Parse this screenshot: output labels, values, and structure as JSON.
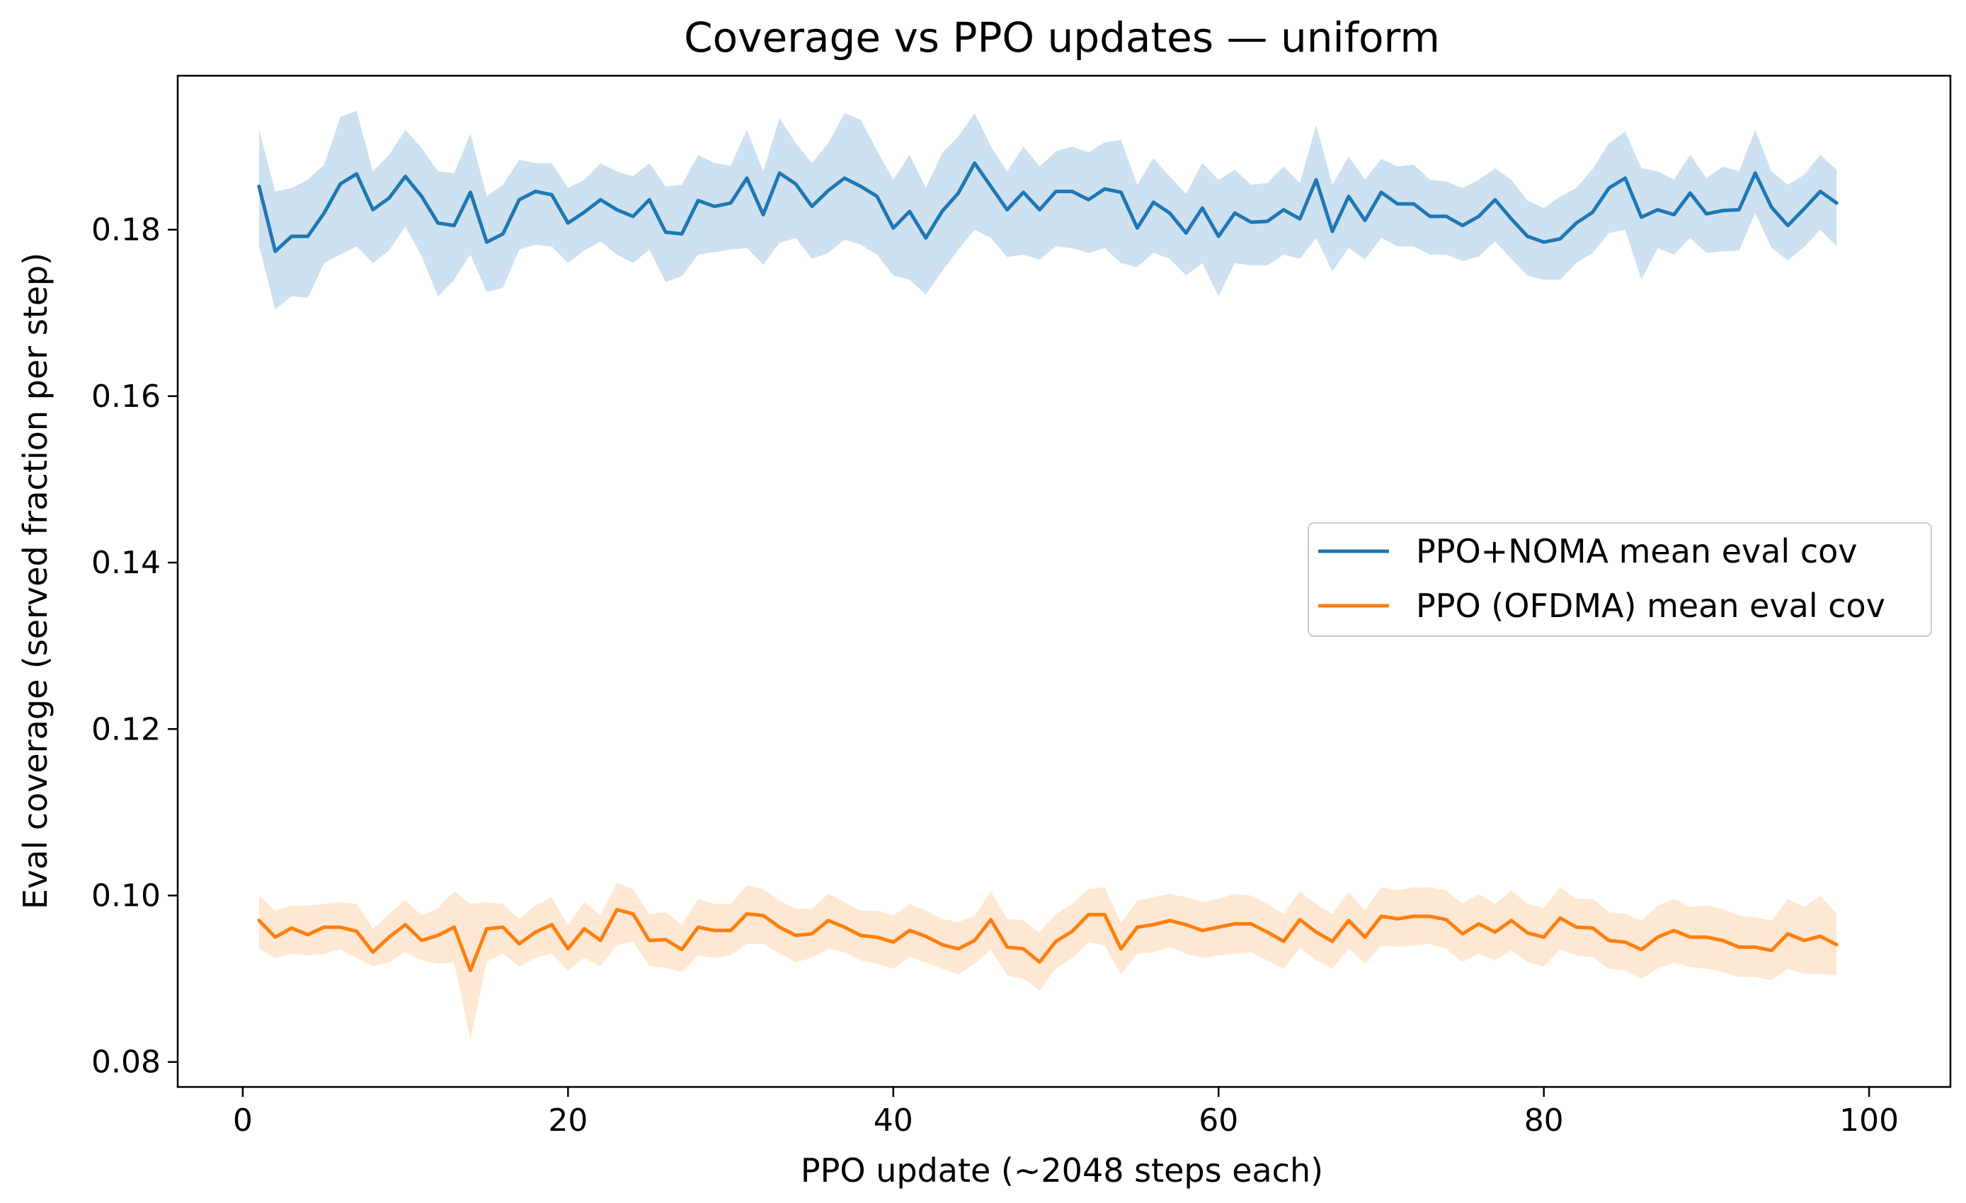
{
  "chart_data": {
    "type": "line",
    "title": "Coverage vs PPO updates — uniform",
    "xlabel": "PPO update (~2048 steps each)",
    "ylabel": "Eval coverage (served fraction per step)",
    "xlim": [
      -4,
      105
    ],
    "ylim": [
      0.077,
      0.1985
    ],
    "xticks": [
      0,
      20,
      40,
      60,
      80,
      100
    ],
    "yticks": [
      0.08,
      0.1,
      0.12,
      0.14,
      0.16,
      0.18
    ],
    "ytick_labels": [
      "0.08",
      "0.10",
      "0.12",
      "0.14",
      "0.16",
      "0.18"
    ],
    "grid": false,
    "legend_position": "center-right",
    "x": [
      1,
      2,
      3,
      4,
      5,
      6,
      7,
      8,
      9,
      10,
      11,
      12,
      13,
      14,
      15,
      16,
      17,
      18,
      19,
      20,
      21,
      22,
      23,
      24,
      25,
      26,
      27,
      28,
      29,
      30,
      31,
      32,
      33,
      34,
      35,
      36,
      37,
      38,
      39,
      40,
      41,
      42,
      43,
      44,
      45,
      46,
      47,
      48,
      49,
      50,
      51,
      52,
      53,
      54,
      55,
      56,
      57,
      58,
      59,
      60,
      61,
      62,
      63,
      64,
      65,
      66,
      67,
      68,
      69,
      70,
      71,
      72,
      73,
      74,
      75,
      76,
      77,
      78,
      79,
      80,
      81,
      82,
      83,
      84,
      85,
      86,
      87,
      88,
      89,
      90,
      91,
      92,
      93,
      94,
      95,
      96,
      97,
      98
    ],
    "series": [
      {
        "name": "PPO+NOMA mean eval cov",
        "color": "#1f77b4",
        "band_color": "#aecde8",
        "values": [
          0.1852,
          0.1774,
          0.1792,
          0.1792,
          0.182,
          0.1855,
          0.1867,
          0.1824,
          0.1838,
          0.1864,
          0.184,
          0.1808,
          0.1805,
          0.1845,
          0.1785,
          0.1795,
          0.1836,
          0.1846,
          0.1842,
          0.1808,
          0.1821,
          0.1836,
          0.1824,
          0.1816,
          0.1836,
          0.1797,
          0.1795,
          0.1835,
          0.1828,
          0.1832,
          0.1862,
          0.1818,
          0.1868,
          0.1855,
          0.1828,
          0.1847,
          0.1862,
          0.1852,
          0.184,
          0.1802,
          0.1822,
          0.179,
          0.1822,
          0.1844,
          0.188,
          0.1852,
          0.1824,
          0.1845,
          0.1824,
          0.1846,
          0.1846,
          0.1836,
          0.1849,
          0.1845,
          0.1802,
          0.1833,
          0.182,
          0.1796,
          0.1826,
          0.1792,
          0.182,
          0.1809,
          0.181,
          0.1824,
          0.1813,
          0.186,
          0.1798,
          0.184,
          0.1811,
          0.1845,
          0.1831,
          0.1831,
          0.1816,
          0.1816,
          0.1805,
          0.1816,
          0.1836,
          0.1813,
          0.1792,
          0.1785,
          0.1789,
          0.1808,
          0.1821,
          0.185,
          0.1862,
          0.1815,
          0.1824,
          0.1818,
          0.1844,
          0.1819,
          0.1823,
          0.1824,
          0.1868,
          0.1827,
          0.1805,
          0.1825,
          0.1846,
          0.1832
        ],
        "lower": [
          0.178,
          0.1704,
          0.172,
          0.1718,
          0.176,
          0.177,
          0.178,
          0.176,
          0.1775,
          0.1804,
          0.1768,
          0.172,
          0.174,
          0.177,
          0.1725,
          0.173,
          0.1776,
          0.1782,
          0.178,
          0.176,
          0.1775,
          0.1786,
          0.177,
          0.176,
          0.1776,
          0.1737,
          0.1744,
          0.177,
          0.1773,
          0.1776,
          0.1778,
          0.1758,
          0.1784,
          0.179,
          0.1765,
          0.1772,
          0.1788,
          0.1782,
          0.177,
          0.1745,
          0.174,
          0.1722,
          0.175,
          0.1776,
          0.18,
          0.179,
          0.1767,
          0.177,
          0.1764,
          0.178,
          0.1778,
          0.1772,
          0.1778,
          0.176,
          0.1755,
          0.1772,
          0.1765,
          0.1745,
          0.176,
          0.172,
          0.176,
          0.1757,
          0.1757,
          0.177,
          0.1765,
          0.179,
          0.175,
          0.1778,
          0.1764,
          0.179,
          0.178,
          0.178,
          0.177,
          0.177,
          0.1762,
          0.1768,
          0.1786,
          0.1765,
          0.1745,
          0.174,
          0.174,
          0.176,
          0.1772,
          0.1796,
          0.18,
          0.174,
          0.1778,
          0.177,
          0.179,
          0.1772,
          0.1774,
          0.1775,
          0.182,
          0.1778,
          0.1763,
          0.1779,
          0.18,
          0.178
        ],
        "upper": [
          0.192,
          0.1846,
          0.185,
          0.186,
          0.1878,
          0.1935,
          0.1943,
          0.187,
          0.189,
          0.192,
          0.1898,
          0.187,
          0.1868,
          0.1915,
          0.184,
          0.1854,
          0.1884,
          0.188,
          0.188,
          0.185,
          0.186,
          0.188,
          0.187,
          0.1864,
          0.188,
          0.1852,
          0.1854,
          0.189,
          0.188,
          0.1877,
          0.192,
          0.187,
          0.1934,
          0.1904,
          0.188,
          0.1904,
          0.194,
          0.1932,
          0.1895,
          0.186,
          0.189,
          0.185,
          0.1892,
          0.1912,
          0.194,
          0.19,
          0.187,
          0.19,
          0.1876,
          0.1894,
          0.19,
          0.1893,
          0.1905,
          0.1908,
          0.1854,
          0.1886,
          0.1864,
          0.1843,
          0.188,
          0.186,
          0.1872,
          0.1854,
          0.1856,
          0.1876,
          0.1856,
          0.1926,
          0.1854,
          0.1888,
          0.186,
          0.1885,
          0.1876,
          0.1878,
          0.186,
          0.1858,
          0.185,
          0.186,
          0.1874,
          0.186,
          0.1835,
          0.1826,
          0.184,
          0.185,
          0.1873,
          0.1904,
          0.1918,
          0.1874,
          0.187,
          0.186,
          0.189,
          0.1862,
          0.1876,
          0.187,
          0.192,
          0.187,
          0.1854,
          0.1866,
          0.189,
          0.1872
        ]
      },
      {
        "name": "PPO (OFDMA) mean eval cov",
        "color": "#ff7f0e",
        "band_color": "#ffd8b6",
        "values": [
          0.097,
          0.095,
          0.0961,
          0.0953,
          0.0962,
          0.0962,
          0.0957,
          0.0932,
          0.095,
          0.0965,
          0.0946,
          0.0952,
          0.0962,
          0.091,
          0.096,
          0.0962,
          0.0942,
          0.0956,
          0.0965,
          0.0936,
          0.096,
          0.0946,
          0.0983,
          0.0978,
          0.0946,
          0.0947,
          0.0935,
          0.0962,
          0.0958,
          0.0958,
          0.0978,
          0.0976,
          0.0962,
          0.0952,
          0.0954,
          0.097,
          0.0962,
          0.0952,
          0.095,
          0.0944,
          0.0958,
          0.0951,
          0.0941,
          0.0936,
          0.0946,
          0.0971,
          0.0938,
          0.0936,
          0.092,
          0.0945,
          0.0957,
          0.0977,
          0.0977,
          0.0936,
          0.0962,
          0.0965,
          0.097,
          0.0965,
          0.0958,
          0.0962,
          0.0966,
          0.0966,
          0.0956,
          0.0945,
          0.0971,
          0.0956,
          0.0945,
          0.097,
          0.095,
          0.0975,
          0.0972,
          0.0975,
          0.0975,
          0.0971,
          0.0954,
          0.0966,
          0.0956,
          0.097,
          0.0955,
          0.095,
          0.0973,
          0.0962,
          0.0961,
          0.0946,
          0.0944,
          0.0935,
          0.095,
          0.0958,
          0.095,
          0.095,
          0.0946,
          0.0938,
          0.0938,
          0.0934,
          0.0954,
          0.0946,
          0.0951,
          0.0941
        ],
        "lower": [
          0.0936,
          0.0925,
          0.093,
          0.0928,
          0.093,
          0.0935,
          0.0925,
          0.0915,
          0.092,
          0.0932,
          0.0922,
          0.0918,
          0.092,
          0.0826,
          0.092,
          0.093,
          0.0915,
          0.0925,
          0.093,
          0.091,
          0.0925,
          0.0915,
          0.094,
          0.0945,
          0.0915,
          0.0913,
          0.0908,
          0.0928,
          0.0925,
          0.0928,
          0.0942,
          0.0942,
          0.093,
          0.092,
          0.0925,
          0.0936,
          0.0932,
          0.0922,
          0.0918,
          0.0912,
          0.0926,
          0.092,
          0.0912,
          0.0905,
          0.0918,
          0.0935,
          0.0904,
          0.09,
          0.0886,
          0.0912,
          0.0925,
          0.0944,
          0.094,
          0.0905,
          0.093,
          0.0932,
          0.0938,
          0.093,
          0.0925,
          0.0928,
          0.093,
          0.0932,
          0.0922,
          0.0912,
          0.0937,
          0.0922,
          0.0912,
          0.0936,
          0.0918,
          0.094,
          0.0938,
          0.094,
          0.0942,
          0.0936,
          0.092,
          0.093,
          0.0922,
          0.0934,
          0.092,
          0.0915,
          0.0935,
          0.0928,
          0.0926,
          0.0912,
          0.091,
          0.09,
          0.0912,
          0.092,
          0.0914,
          0.0912,
          0.0908,
          0.0902,
          0.0902,
          0.0898,
          0.0912,
          0.0906,
          0.0906,
          0.0904
        ],
        "upper": [
          0.1,
          0.0982,
          0.0988,
          0.0988,
          0.099,
          0.0992,
          0.099,
          0.096,
          0.0978,
          0.0995,
          0.0976,
          0.0985,
          0.1005,
          0.099,
          0.0992,
          0.099,
          0.0972,
          0.0988,
          0.0998,
          0.0964,
          0.0992,
          0.0976,
          0.1015,
          0.1008,
          0.0978,
          0.098,
          0.0965,
          0.0996,
          0.099,
          0.099,
          0.1012,
          0.1008,
          0.0994,
          0.0984,
          0.0984,
          0.1002,
          0.0992,
          0.0982,
          0.0982,
          0.0976,
          0.099,
          0.0982,
          0.0972,
          0.0968,
          0.0976,
          0.1005,
          0.0972,
          0.097,
          0.0956,
          0.0978,
          0.099,
          0.1008,
          0.101,
          0.0967,
          0.0994,
          0.0998,
          0.1002,
          0.0998,
          0.0992,
          0.0996,
          0.1002,
          0.1,
          0.099,
          0.0978,
          0.1005,
          0.099,
          0.0978,
          0.1004,
          0.0982,
          0.101,
          0.1006,
          0.101,
          0.101,
          0.1006,
          0.099,
          0.1002,
          0.099,
          0.1006,
          0.099,
          0.0985,
          0.101,
          0.0996,
          0.0996,
          0.098,
          0.0978,
          0.097,
          0.0988,
          0.0996,
          0.0986,
          0.0988,
          0.0984,
          0.0976,
          0.0974,
          0.097,
          0.0996,
          0.0986,
          0.1,
          0.0978
        ]
      }
    ]
  }
}
